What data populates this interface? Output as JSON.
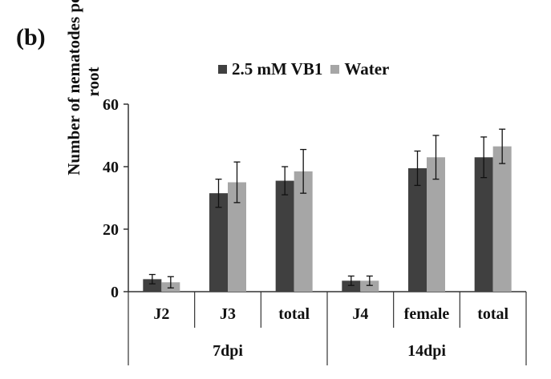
{
  "panel_label": "(b)",
  "chart_data": {
    "type": "bar",
    "title": "",
    "ylabel_line1": "Number of nematodes per",
    "ylabel_line2": "root",
    "xlabel": "",
    "ylim": [
      0,
      60
    ],
    "yticks": [
      "0",
      "20",
      "40",
      "60"
    ],
    "grid": false,
    "legend_position": "top-center",
    "categories": [
      "J2",
      "J3",
      "total",
      "J4",
      "female",
      "total"
    ],
    "groups": [
      {
        "label": "7dpi",
        "categories": [
          "J2",
          "J3",
          "total"
        ]
      },
      {
        "label": "14dpi",
        "categories": [
          "J4",
          "female",
          "total"
        ]
      }
    ],
    "series": [
      {
        "name": "2.5 mM VB1",
        "color": "#404040",
        "values": [
          4,
          31.5,
          35.5,
          3.5,
          39.5,
          43
        ],
        "errors": [
          1.5,
          4.5,
          4.5,
          1.5,
          5.5,
          6.5
        ]
      },
      {
        "name": "Water",
        "color": "#a6a6a6",
        "values": [
          3,
          35,
          38.5,
          3.5,
          43,
          46.5
        ],
        "errors": [
          1.8,
          6.5,
          7,
          1.5,
          7,
          5.5
        ]
      }
    ]
  }
}
